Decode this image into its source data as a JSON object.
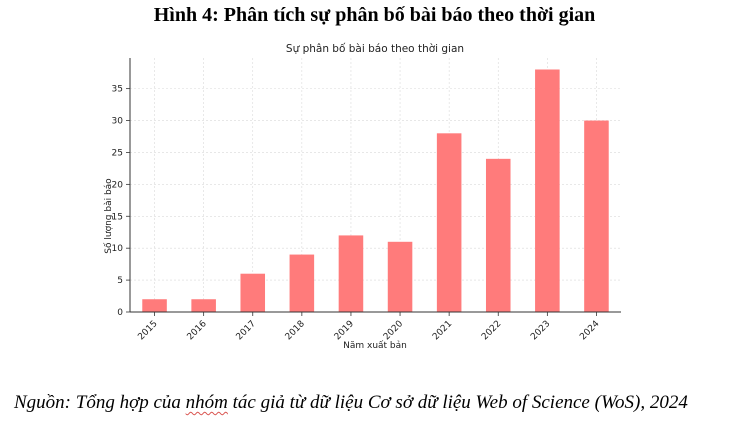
{
  "figure_title": "Hình 4: Phân tích sự phân bố bài báo theo thời gian",
  "source_note": {
    "prefix": "Nguồn:  Tổng hợp của ",
    "underlined": "nhóm",
    "suffix": " tác giả từ dữ liệu Cơ sở dữ liệu Web of Science (WoS), 2024"
  },
  "chart_data": {
    "type": "bar",
    "title": "Sự phân bố bài báo theo thời gian",
    "xlabel": "Năm xuất bản",
    "ylabel": "Số lượng bài báo",
    "categories": [
      "2015",
      "2016",
      "2017",
      "2018",
      "2019",
      "2020",
      "2021",
      "2022",
      "2023",
      "2024"
    ],
    "values": [
      2,
      2,
      6,
      9,
      12,
      11,
      28,
      24,
      38,
      30
    ],
    "ylim": [
      0,
      39.8
    ],
    "yticks": [
      0,
      5,
      10,
      15,
      20,
      25,
      30,
      35
    ],
    "grid": true,
    "bar_color": "#ff7b7b"
  }
}
